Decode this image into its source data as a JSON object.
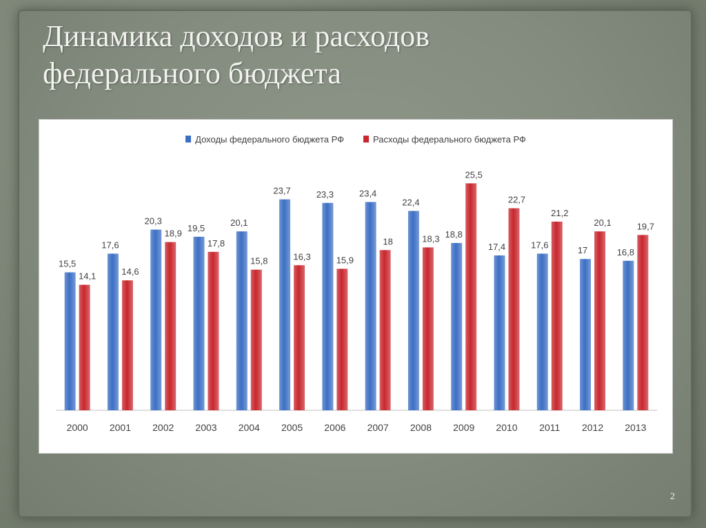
{
  "slide": {
    "title_lines": [
      "Динамика доходов и расходов",
      "федерального бюджета"
    ],
    "page_number": "2"
  },
  "colors": {
    "income": "#3c6fc4",
    "expense": "#c8272e"
  },
  "chart_data": {
    "type": "bar",
    "categories": [
      "2000",
      "2001",
      "2002",
      "2003",
      "2004",
      "2005",
      "2006",
      "2007",
      "2008",
      "2009",
      "2010",
      "2011",
      "2012",
      "2013"
    ],
    "series": [
      {
        "name": "Доходы федерального бюджета РФ",
        "values": [
          15.5,
          17.6,
          20.3,
          19.5,
          20.1,
          23.7,
          23.3,
          23.4,
          22.4,
          18.8,
          17.4,
          17.6,
          17,
          16.8
        ],
        "labels": [
          "15,5",
          "17,6",
          "20,3",
          "19,5",
          "20,1",
          "23,7",
          "23,3",
          "23,4",
          "22,4",
          "18,8",
          "17,4",
          "17,6",
          "17",
          "16,8"
        ]
      },
      {
        "name": "Расходы федерального бюджета РФ",
        "values": [
          14.1,
          14.6,
          18.9,
          17.8,
          15.8,
          16.3,
          15.9,
          18,
          18.3,
          25.5,
          22.7,
          21.2,
          20.1,
          19.7
        ],
        "labels": [
          "14,1",
          "14,6",
          "18,9",
          "17,8",
          "15,8",
          "16,3",
          "15,9",
          "18",
          "18,3",
          "25,5",
          "22,7",
          "21,2",
          "20,1",
          "19,7"
        ]
      }
    ],
    "ylim": [
      0,
      28
    ],
    "legend_position": "top",
    "grid": false
  }
}
